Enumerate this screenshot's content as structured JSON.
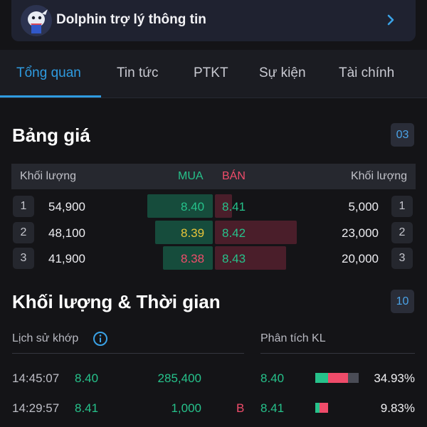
{
  "banner": {
    "title": "Dolphin trợ lý thông tin"
  },
  "tabs": [
    {
      "label": "Tổng quan",
      "active": true
    },
    {
      "label": "Tin tức"
    },
    {
      "label": "PTKT"
    },
    {
      "label": "Sự kiện"
    },
    {
      "label": "Tài chính"
    }
  ],
  "order_book": {
    "title": "Bảng giá",
    "count": "03",
    "header": {
      "buy_volume": "Khối lượng",
      "buy": "MUA",
      "sell": "BÁN",
      "sell_volume": "Khối lượng"
    },
    "rows": [
      {
        "level": "1",
        "buy_volume": "54,900",
        "buy_price": "8.40",
        "sell_price": "8.41",
        "sell_volume": "5,000",
        "buy_ratio": 1.0,
        "sell_ratio": 0.22
      },
      {
        "level": "2",
        "buy_volume": "48,100",
        "buy_price": "8.39",
        "sell_price": "8.42",
        "sell_volume": "23,000",
        "buy_ratio": 0.88,
        "sell_ratio": 1.0
      },
      {
        "level": "3",
        "buy_volume": "41,900",
        "buy_price": "8.38",
        "sell_price": "8.43",
        "sell_volume": "20,000",
        "buy_ratio": 0.76,
        "sell_ratio": 0.87
      }
    ]
  },
  "trades": {
    "title": "Khối lượng & Thời gian",
    "count": "10",
    "history_label": "Lịch sử khớp",
    "analysis_label": "Phân tích KL",
    "rows": [
      {
        "time": "14:45:07",
        "price": "8.40",
        "volume": "285,400",
        "side": "",
        "a_price": "8.40",
        "pct": "34.93%"
      },
      {
        "time": "14:29:57",
        "price": "8.41",
        "volume": "1,000",
        "side": "B",
        "a_price": "8.41",
        "pct": "9.83%"
      }
    ]
  },
  "colors": {
    "accent": "#2f9be0",
    "up": "#26c28b",
    "down": "#ef4c6a",
    "ref": "#e6c43a"
  }
}
